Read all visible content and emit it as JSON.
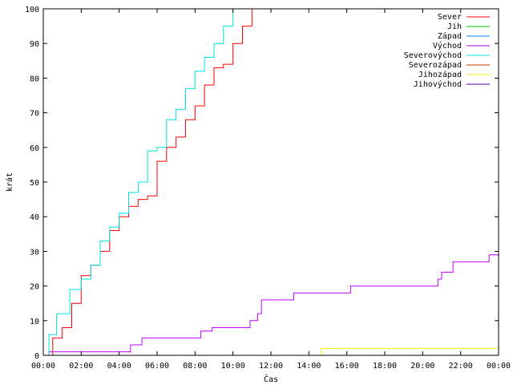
{
  "chart_data": {
    "type": "line",
    "title": "",
    "xlabel": "Čas",
    "ylabel": "krát",
    "xlim": [
      "00:00",
      "24:00"
    ],
    "ylim": [
      0,
      100
    ],
    "xticks": [
      "00:00",
      "02:00",
      "04:00",
      "06:00",
      "08:00",
      "10:00",
      "12:00",
      "14:00",
      "16:00",
      "18:00",
      "20:00",
      "22:00",
      "00:00"
    ],
    "yticks": [
      0,
      10,
      20,
      30,
      40,
      50,
      60,
      70,
      80,
      90,
      100
    ],
    "grid": false,
    "legend_placement": "top-right",
    "x_unit": "hours since 00:00",
    "series": [
      {
        "name": "Sever",
        "color": "#ff0000",
        "x": [
          0,
          0.5,
          1.0,
          1.5,
          2.0,
          2.5,
          3.0,
          3.5,
          4.0,
          4.5,
          5.0,
          5.5,
          6.0,
          6.5,
          7.0,
          7.5,
          8.0,
          8.5,
          9.0,
          9.5,
          10.0,
          10.5,
          11.0
        ],
        "y": [
          0,
          5,
          8,
          15,
          23,
          26,
          30,
          36,
          40,
          43,
          45,
          46,
          56,
          60,
          63,
          68,
          72,
          78,
          83,
          84,
          90,
          95,
          100
        ]
      },
      {
        "name": "Jih",
        "color": "#00c000",
        "x": [],
        "y": []
      },
      {
        "name": "Západ",
        "color": "#0080ff",
        "x": [],
        "y": []
      },
      {
        "name": "Východ",
        "color": "#c000ff",
        "x": [
          0,
          0.3,
          4.6,
          5.2,
          8.3,
          8.9,
          10.9,
          11.3,
          11.5,
          13.2,
          16.2,
          20.8,
          21.0,
          21.6,
          23.5,
          24
        ],
        "y": [
          0,
          1,
          3,
          5,
          7,
          8,
          10,
          12,
          16,
          18,
          20,
          22,
          24,
          27,
          29,
          29
        ]
      },
      {
        "name": "Severovýchod",
        "color": "#00e0e0",
        "x": [
          0,
          0.3,
          0.7,
          1.4,
          2.0,
          2.5,
          3.0,
          3.5,
          4.0,
          4.5,
          5.0,
          5.5,
          6.0,
          6.5,
          7.0,
          7.5,
          8.0,
          8.5,
          9.0,
          9.5,
          10.0
        ],
        "y": [
          0,
          6,
          12,
          19,
          22,
          26,
          33,
          37,
          41,
          47,
          50,
          59,
          60,
          68,
          71,
          77,
          82,
          86,
          90,
          95,
          100
        ]
      },
      {
        "name": "Severozápad",
        "color": "#c04000",
        "x": [],
        "y": []
      },
      {
        "name": "Jihozápad",
        "color": "#f0f000",
        "x": [
          0,
          14.6,
          14.65,
          24
        ],
        "y": [
          0,
          0,
          2,
          2
        ]
      },
      {
        "name": "Jihovýchod",
        "color": "#4000a0",
        "x": [],
        "y": []
      }
    ]
  }
}
